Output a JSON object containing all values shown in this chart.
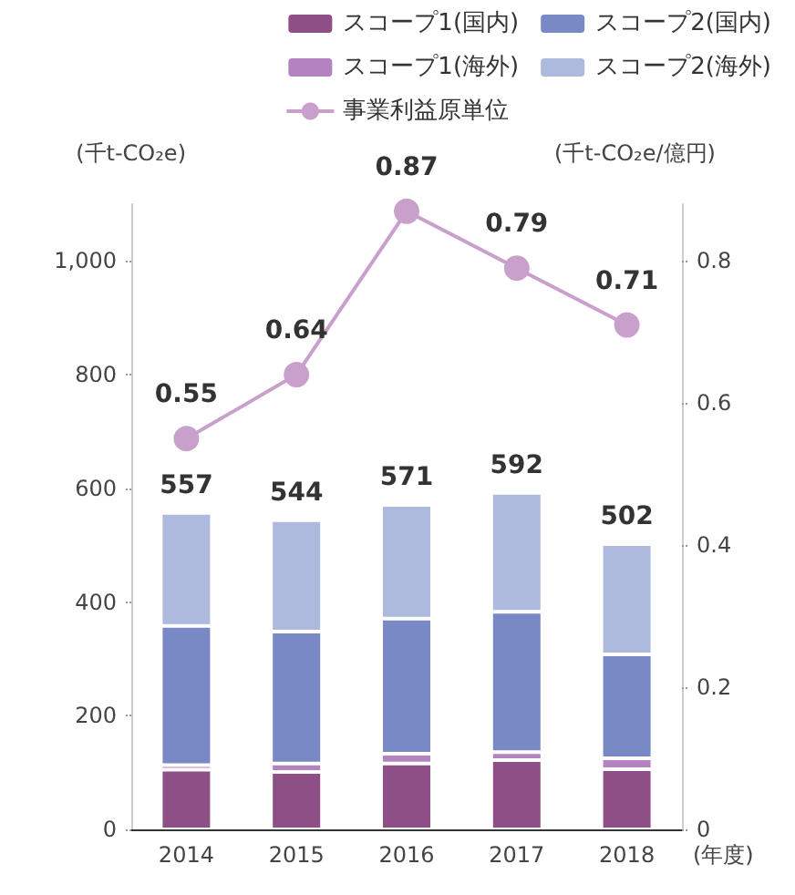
{
  "chart_data": {
    "type": "bar",
    "stacked": true,
    "categories": [
      "2014",
      "2015",
      "2016",
      "2017",
      "2018"
    ],
    "xlabel": "(年度)",
    "ylabel": "(千t-CO₂e)",
    "y2label": "(千t-CO₂e/億円)",
    "series": [
      {
        "name": "スコープ1(国内)",
        "color": "#8e4f86",
        "values": [
          105,
          101,
          116,
          122,
          106
        ]
      },
      {
        "name": "スコープ1(海外)",
        "color": "#b283bf",
        "values": [
          8,
          15,
          17,
          14,
          19
        ]
      },
      {
        "name": "スコープ2(国内)",
        "color": "#7889c5",
        "values": [
          245,
          232,
          238,
          247,
          183
        ]
      },
      {
        "name": "スコープ2(海外)",
        "color": "#adbade",
        "values": [
          199,
          196,
          200,
          209,
          194
        ]
      },
      {
        "name": "事業利益原単位",
        "color": "#c9a0cc",
        "type": "line",
        "axis": "y2",
        "marker": "circle",
        "data_labels": true,
        "values": [
          0.55,
          0.64,
          0.87,
          0.79,
          0.71
        ]
      }
    ],
    "totals": [
      "557",
      "544",
      "571",
      "592",
      "502"
    ],
    "ylim": [
      0,
      1100
    ],
    "yticks": [
      0,
      200,
      400,
      600,
      800,
      {
        "value": 1000,
        "label": "1,000"
      }
    ],
    "y2lim": [
      0,
      0.88
    ],
    "y2ticks": [
      0,
      0.2,
      0.4,
      0.6,
      0.8
    ],
    "grid": false,
    "legend": "top right"
  }
}
